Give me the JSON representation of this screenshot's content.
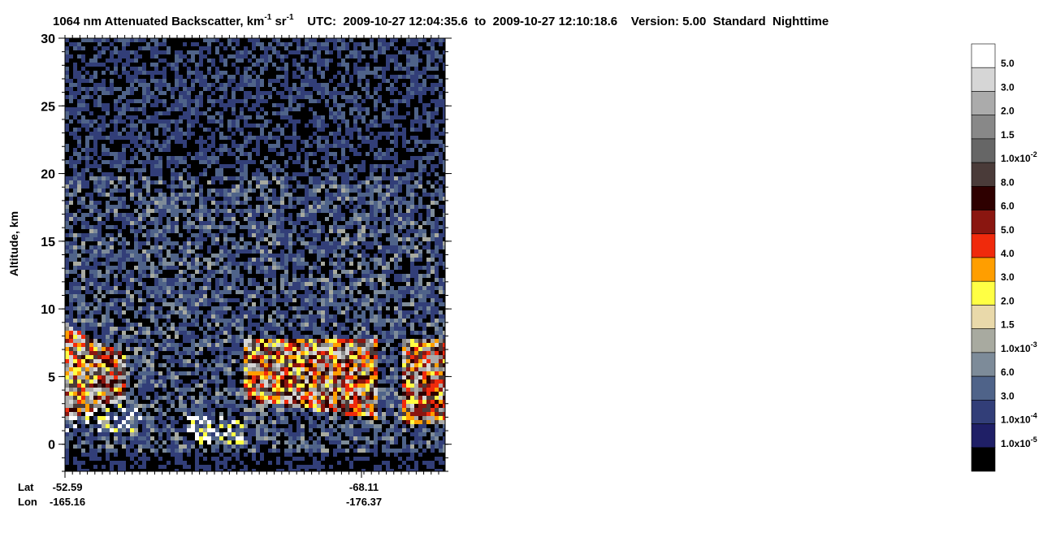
{
  "chart_data": {
    "type": "lidar-curtain",
    "title_parts": [
      "1064 nm Attenuated Backscatter, km",
      "-1",
      " sr",
      "-1",
      "    UTC:  2009-10-27 12:04:35.6  to  2009-10-27 12:10:18.6    Version: 5.00  Standard  Nighttime"
    ],
    "y_label": "Altitude, km",
    "ylim": [
      -2,
      30
    ],
    "yticks": [
      0,
      5,
      10,
      15,
      20,
      25,
      30
    ],
    "x_row_labels": [
      "Lat",
      "Lon"
    ],
    "x_labels": [
      {
        "lat": "-52.59",
        "lon": "-165.16"
      },
      {
        "lat": "-68.11",
        "lon": "-176.37"
      }
    ],
    "colorbar": {
      "colors": [
        "#ffffff",
        "#d6d6d6",
        "#ababab",
        "#888888",
        "#666666",
        "#4a3b39",
        "#2e0000",
        "#8a1610",
        "#f02a0c",
        "#ff9e00",
        "#ffff44",
        "#e9d9aa",
        "#a8aaa0",
        "#7d8b99",
        "#4f6389",
        "#323e78",
        "#1f1f66",
        "#000000"
      ],
      "labels": [
        {
          "text": "5.0"
        },
        {
          "text": "3.0"
        },
        {
          "text": "2.0"
        },
        {
          "text": "1.5"
        },
        {
          "text": "1.0x10",
          "sup": "-2"
        },
        {
          "text": "8.0"
        },
        {
          "text": "6.0"
        },
        {
          "text": "5.0"
        },
        {
          "text": "4.0"
        },
        {
          "text": "3.0"
        },
        {
          "text": "2.0"
        },
        {
          "text": "1.5"
        },
        {
          "text": "1.0x10",
          "sup": "-3"
        },
        {
          "text": "6.0"
        },
        {
          "text": "3.0"
        },
        {
          "text": "1.0x10",
          "sup": "-4"
        },
        {
          "text": "1.0x10",
          "sup": "-5"
        }
      ]
    }
  }
}
